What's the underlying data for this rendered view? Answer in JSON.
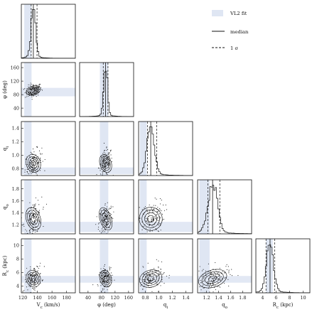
{
  "chart_data": {
    "type": "corner",
    "parameters": [
      {
        "key": "vc",
        "label": "V",
        "sub": "c",
        "unit": " (km/s)",
        "ticks": [
          "120",
          "140",
          "160",
          "180"
        ],
        "tick_values": [
          120,
          140,
          160,
          180
        ],
        "range": [
          118,
          192
        ],
        "truth": [
          122,
          132
        ],
        "median": 134.5,
        "sigma": [
          131.5,
          139.5
        ]
      },
      {
        "key": "phi",
        "label": "φ",
        "sub": "",
        "unit": " (deg)",
        "ticks": [
          "40",
          "80",
          "120",
          "160"
        ],
        "tick_values": [
          40,
          80,
          120,
          160
        ],
        "range": [
          15,
          175
        ],
        "truth": [
          75,
          100
        ],
        "median": 92,
        "sigma": [
          85,
          99
        ]
      },
      {
        "key": "qi",
        "label": "q",
        "sub": "i",
        "unit": "",
        "ticks": [
          "0.8",
          "1.0",
          "1.2",
          "1.4"
        ],
        "tick_values": [
          0.8,
          1.0,
          1.2,
          1.4
        ],
        "range": [
          0.7,
          1.5
        ],
        "truth": [
          0.72,
          0.82
        ],
        "median": 0.88,
        "sigma": [
          0.83,
          0.97
        ]
      },
      {
        "key": "qo",
        "label": "q",
        "sub": "o",
        "unit": "",
        "ticks": [
          "1.2",
          "1.4",
          "1.6",
          "1.8"
        ],
        "tick_values": [
          1.2,
          1.4,
          1.6,
          1.8
        ],
        "range": [
          1.05,
          1.95
        ],
        "truth": [
          1.08,
          1.25
        ],
        "median": 1.3,
        "sigma": [
          1.22,
          1.42
        ]
      },
      {
        "key": "rc",
        "label": "R",
        "sub": "c",
        "unit": " (kpc)",
        "ticks": [
          "4",
          "6",
          "8",
          "10"
        ],
        "tick_values": [
          4,
          6,
          8,
          10
        ],
        "range": [
          3,
          11
        ],
        "truth": [
          4.5,
          5.5
        ],
        "median": 5.1,
        "sigma": [
          4.5,
          5.8
        ]
      }
    ],
    "y_tick_sets": {
      "phi": {
        "ticks": [
          "40",
          "80",
          "120",
          "160"
        ],
        "tick_values": [
          40,
          80,
          120,
          160
        ]
      },
      "qi": {
        "ticks": [
          "0.8",
          "1.0",
          "1.2",
          "1.4"
        ],
        "tick_values": [
          0.8,
          1.0,
          1.2,
          1.4
        ]
      },
      "qo": {
        "ticks": [
          "1.2",
          "1.4",
          "1.6",
          "1.8"
        ],
        "tick_values": [
          1.2,
          1.4,
          1.6,
          1.8
        ]
      },
      "rc": {
        "ticks": [
          "4",
          "6",
          "8",
          "10"
        ],
        "tick_values": [
          4,
          6,
          8,
          10
        ]
      }
    },
    "legend": [
      {
        "kind": "band",
        "label": "VL2 fit"
      },
      {
        "kind": "solid",
        "label": "median"
      },
      {
        "kind": "dashed",
        "label": "1 σ"
      }
    ],
    "legend_position": "top-right",
    "colors": {
      "band": "#dfe6f3",
      "line": "#111111",
      "contour": "#111111",
      "point": "#111111"
    }
  }
}
